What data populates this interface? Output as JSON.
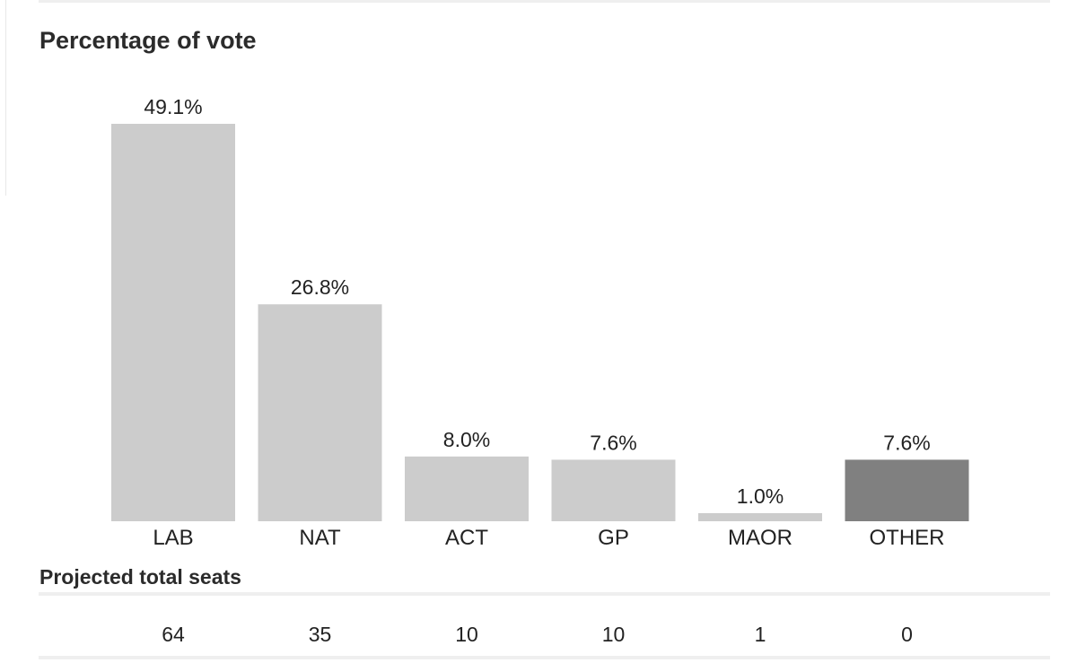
{
  "chart_data": {
    "type": "bar",
    "title": "Percentage of vote",
    "categories": [
      "LAB",
      "NAT",
      "ACT",
      "GP",
      "MAOR",
      "OTHER"
    ],
    "values": [
      49.1,
      26.8,
      8.0,
      7.6,
      1.0,
      7.6
    ],
    "value_labels": [
      "49.1%",
      "26.8%",
      "8.0%",
      "7.6%",
      "1.0%",
      "7.6%"
    ],
    "colors": [
      "#cccccc",
      "#cccccc",
      "#cccccc",
      "#cccccc",
      "#cccccc",
      "#808080"
    ],
    "ylim": [
      0,
      49.1
    ],
    "grid": false,
    "xlabel": "",
    "ylabel": ""
  },
  "seats": {
    "title": "Projected total seats",
    "values": [
      "64",
      "35",
      "10",
      "10",
      "1",
      "0"
    ]
  }
}
